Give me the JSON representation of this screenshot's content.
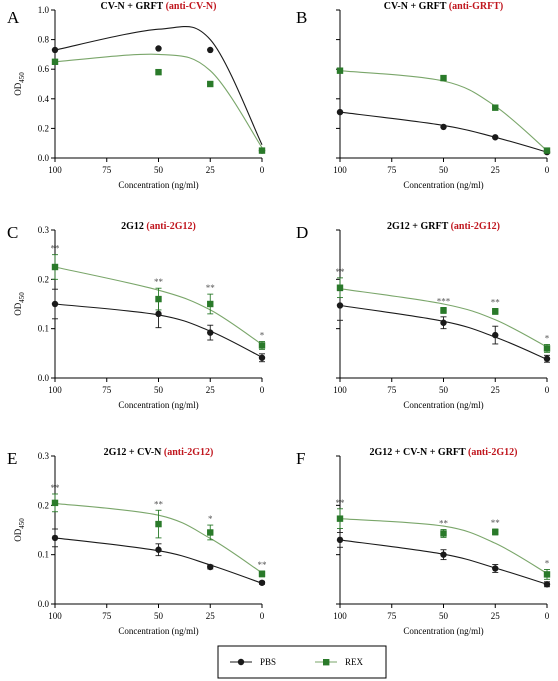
{
  "colors": {
    "pbs": "#1a1a1a",
    "rex": "#2a7a2a",
    "rex_line": "#7aa66a",
    "title_red": "#c0161e"
  },
  "legend": [
    {
      "name": "PBS",
      "color": "#1a1a1a",
      "marker": "circle"
    },
    {
      "name": "REX",
      "color": "#2a7a2a",
      "marker": "square"
    }
  ],
  "chart_data": [
    {
      "panel": "A",
      "type": "scatter",
      "title": "CV-N + GRFT",
      "title_highlight": "(anti-CV-N)",
      "xlabel": "Concentration (ng/ml)",
      "ylabel": "OD450",
      "x": [
        100,
        50,
        25,
        0
      ],
      "x_ticks": [
        100,
        75,
        50,
        25,
        0
      ],
      "x_reversed": true,
      "ylim": [
        0,
        1.0
      ],
      "y_ticks": [
        "0.0",
        "0.2",
        "0.4",
        "0.6",
        "0.8",
        "1.0"
      ],
      "series": [
        {
          "name": "PBS",
          "values": [
            0.73,
            0.74,
            0.73,
            0.05
          ],
          "errors": [
            0,
            0,
            0,
            0
          ],
          "fit": [
            0.73,
            0.87,
            0.8,
            0.09
          ]
        },
        {
          "name": "REX",
          "values": [
            0.65,
            0.58,
            0.5,
            0.05
          ],
          "errors": [
            0,
            0,
            0,
            0
          ],
          "fit": [
            0.65,
            0.7,
            0.59,
            0.07
          ]
        }
      ],
      "significance": []
    },
    {
      "panel": "B",
      "type": "scatter",
      "title": "CV-N + GRFT",
      "title_highlight": "(anti-GRFT)",
      "xlabel": "Concentration (ng/ml)",
      "ylabel": "",
      "x": [
        100,
        50,
        25,
        0
      ],
      "x_ticks": [
        100,
        75,
        50,
        25,
        0
      ],
      "x_reversed": true,
      "ylim": [
        0,
        1.0
      ],
      "y_ticks": [],
      "series": [
        {
          "name": "PBS",
          "values": [
            0.31,
            0.21,
            0.14,
            0.04
          ],
          "errors": [
            0,
            0,
            0,
            0
          ],
          "fit": [
            0.31,
            0.22,
            0.14,
            0.04
          ]
        },
        {
          "name": "REX",
          "values": [
            0.59,
            0.54,
            0.34,
            0.05
          ],
          "errors": [
            0,
            0,
            0,
            0
          ],
          "fit": [
            0.59,
            0.52,
            0.35,
            0.05
          ]
        }
      ],
      "significance": []
    },
    {
      "panel": "C",
      "type": "scatter",
      "title": "2G12",
      "title_highlight": "(anti-2G12)",
      "xlabel": "Concentration (ng/ml)",
      "ylabel": "OD450",
      "x": [
        100,
        50,
        25,
        0
      ],
      "x_ticks": [
        100,
        75,
        50,
        25,
        0
      ],
      "x_reversed": true,
      "ylim": [
        0,
        0.3
      ],
      "y_ticks": [
        "0.0",
        "0.1",
        "0.2",
        "0.3"
      ],
      "series": [
        {
          "name": "PBS",
          "values": [
            0.15,
            0.13,
            0.092,
            0.041
          ],
          "errors": [
            0.03,
            0.028,
            0.015,
            0.008
          ],
          "fit": [
            0.15,
            0.128,
            0.095,
            0.042
          ]
        },
        {
          "name": "REX",
          "values": [
            0.225,
            0.16,
            0.15,
            0.066
          ],
          "errors": [
            0.025,
            0.022,
            0.02,
            0.008
          ],
          "fit": [
            0.225,
            0.178,
            0.138,
            0.068
          ]
        }
      ],
      "significance": [
        "**",
        "**",
        "**",
        "*"
      ]
    },
    {
      "panel": "D",
      "type": "scatter",
      "title": "2G12 + GRFT",
      "title_highlight": "(anti-2G12)",
      "xlabel": "Concentration (ng/ml)",
      "ylabel": "",
      "x": [
        100,
        50,
        25,
        0
      ],
      "x_ticks": [
        100,
        75,
        50,
        25,
        0
      ],
      "x_reversed": true,
      "ylim": [
        0,
        0.3
      ],
      "y_ticks": [],
      "series": [
        {
          "name": "PBS",
          "values": [
            0.147,
            0.112,
            0.087,
            0.039
          ],
          "errors": [
            0.03,
            0.012,
            0.018,
            0.007
          ],
          "fit": [
            0.147,
            0.115,
            0.083,
            0.038
          ]
        },
        {
          "name": "REX",
          "values": [
            0.183,
            0.137,
            0.135,
            0.06
          ],
          "errors": [
            0.02,
            0.006,
            0.006,
            0.008
          ],
          "fit": [
            0.181,
            0.15,
            0.118,
            0.063
          ]
        }
      ],
      "significance": [
        "**",
        "***",
        "**",
        "*"
      ]
    },
    {
      "panel": "E",
      "type": "scatter",
      "title": "2G12 + CV-N",
      "title_highlight": "(anti-2G12)",
      "xlabel": "Concentration (ng/ml)",
      "ylabel": "OD450",
      "x": [
        100,
        50,
        25,
        0
      ],
      "x_ticks": [
        100,
        75,
        50,
        25,
        0
      ],
      "x_reversed": true,
      "ylim": [
        0,
        0.3
      ],
      "y_ticks": [
        "0.0",
        "0.1",
        "0.2",
        "0.3"
      ],
      "series": [
        {
          "name": "PBS",
          "values": [
            0.134,
            0.11,
            0.075,
            0.043
          ],
          "errors": [
            0.018,
            0.012,
            0.004,
            0.003
          ],
          "fit": [
            0.134,
            0.108,
            0.079,
            0.042
          ]
        },
        {
          "name": "REX",
          "values": [
            0.205,
            0.162,
            0.145,
            0.061
          ],
          "errors": [
            0.018,
            0.028,
            0.015,
            0.006
          ],
          "fit": [
            0.204,
            0.18,
            0.133,
            0.063
          ]
        }
      ],
      "significance": [
        "**",
        "**",
        "*",
        "**"
      ]
    },
    {
      "panel": "F",
      "type": "scatter",
      "title": "2G12 + CV-N + GRFT",
      "title_highlight": "(anti-2G12)",
      "xlabel": "Concentration (ng/ml)",
      "ylabel": "",
      "x": [
        100,
        50,
        25,
        0
      ],
      "x_ticks": [
        100,
        75,
        50,
        25,
        0
      ],
      "x_reversed": true,
      "ylim": [
        0,
        0.3
      ],
      "y_ticks": [],
      "series": [
        {
          "name": "PBS",
          "values": [
            0.13,
            0.1,
            0.072,
            0.04
          ],
          "errors": [
            0.015,
            0.01,
            0.008,
            0.005
          ],
          "fit": [
            0.13,
            0.101,
            0.073,
            0.04
          ]
        },
        {
          "name": "REX",
          "values": [
            0.173,
            0.143,
            0.146,
            0.06
          ],
          "errors": [
            0.02,
            0.008,
            0.006,
            0.01
          ],
          "fit": [
            0.173,
            0.158,
            0.123,
            0.062
          ]
        }
      ],
      "significance": [
        "**",
        "**",
        "**",
        "*"
      ]
    }
  ]
}
